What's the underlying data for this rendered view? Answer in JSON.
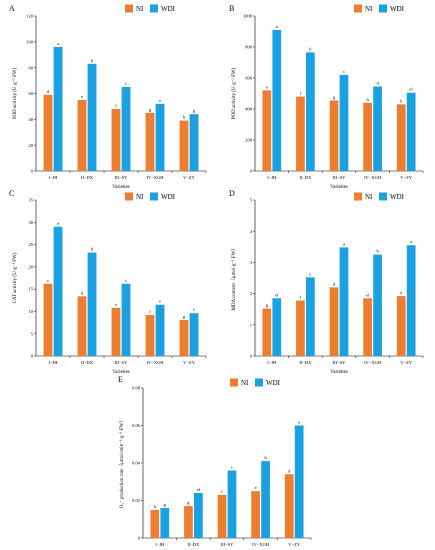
{
  "figure": {
    "legend": {
      "ni_label": "NI",
      "wdi_label": "WDI",
      "ni_color": "#ED7D31",
      "wdi_color": "#1BA1E2"
    },
    "categories": [
      "I−JH",
      "II−DX",
      "III−SY",
      "IV−XGH",
      "V−ZY"
    ]
  },
  "chart_data": [
    {
      "panel": "A",
      "type": "bar",
      "ylabel": "SOD activity (U·g⁻¹ FW)",
      "xlabel": "Varieties",
      "ylim": [
        0,
        120
      ],
      "yticks": [
        0,
        20,
        40,
        60,
        80,
        100,
        120
      ],
      "categories": [
        "I−JH",
        "II−DX",
        "III−SY",
        "IV−XGH",
        "V−ZY"
      ],
      "series": [
        {
          "name": "NI",
          "values": [
            59,
            55,
            48,
            45,
            39
          ],
          "letters": [
            "d",
            "e",
            "f",
            "g",
            "h"
          ]
        },
        {
          "name": "WDI",
          "values": [
            96,
            83,
            65,
            52,
            44
          ],
          "letters": [
            "a",
            "b",
            "c",
            "e",
            "g"
          ]
        }
      ]
    },
    {
      "panel": "B",
      "type": "bar",
      "ylabel": "POD activity (U·g⁻¹ FW)",
      "xlabel": "Varieties",
      "ylim": [
        0,
        1000
      ],
      "yticks": [
        0,
        200,
        400,
        600,
        800,
        1000
      ],
      "categories": [
        "I−JH",
        "II−DX",
        "III−SY",
        "IV−XGH",
        "V−ZY"
      ],
      "series": [
        {
          "name": "NI",
          "values": [
            520,
            480,
            455,
            440,
            430
          ],
          "letters": [
            "e",
            "f",
            "g",
            "h",
            "h"
          ]
        },
        {
          "name": "WDI",
          "values": [
            910,
            765,
            620,
            545,
            505
          ],
          "letters": [
            "a",
            "b",
            "c",
            "d",
            "ef"
          ]
        }
      ]
    },
    {
      "panel": "C",
      "type": "bar",
      "ylabel": "CAT activity (U·g⁻¹ FW)",
      "xlabel": "Varieties",
      "ylim": [
        0,
        35
      ],
      "yticks": [
        0,
        5,
        10,
        15,
        20,
        25,
        30,
        35
      ],
      "categories": [
        "I−JH",
        "II−DX",
        "III−SY",
        "IV−XGH",
        "V−ZY"
      ],
      "series": [
        {
          "name": "NI",
          "values": [
            16.2,
            13.4,
            10.8,
            9.2,
            8.1
          ],
          "letters": [
            "c",
            "d",
            "e",
            "f",
            "g"
          ]
        },
        {
          "name": "WDI",
          "values": [
            29.0,
            23.2,
            16.2,
            11.5,
            9.6
          ],
          "letters": [
            "a",
            "b",
            "c",
            "e",
            "f"
          ]
        }
      ]
    },
    {
      "panel": "D",
      "type": "bar",
      "ylabel": "MDA content（μmol·g⁻¹ FW）",
      "xlabel": "Varieties",
      "ylim": [
        0,
        5
      ],
      "yticks": [
        0,
        1,
        2,
        3,
        4,
        5
      ],
      "categories": [
        "I−JH",
        "II−DX",
        "III−SY",
        "IV−XGH",
        "V−ZY"
      ],
      "series": [
        {
          "name": "NI",
          "values": [
            1.52,
            1.78,
            2.2,
            1.85,
            1.92
          ],
          "letters": [
            "g",
            "f",
            "d",
            "ef",
            "e"
          ]
        },
        {
          "name": "WDI",
          "values": [
            1.85,
            2.52,
            3.48,
            3.25,
            3.55
          ],
          "letters": [
            "ef",
            "c",
            "a",
            "b",
            "a"
          ]
        }
      ]
    },
    {
      "panel": "E",
      "type": "bar",
      "ylabel": "O₂⁻ production rate（μmol·min⁻¹·g⁻¹ FW）",
      "xlabel": "Varieties",
      "ylim": [
        0,
        0.08
      ],
      "yticks": [
        0,
        0.02,
        0.04,
        0.06,
        0.08
      ],
      "categories": [
        "I−JH",
        "II−DX",
        "III−SY",
        "IV−XGH",
        "V−ZY"
      ],
      "series": [
        {
          "name": "NI",
          "values": [
            0.015,
            0.017,
            0.023,
            0.025,
            0.034
          ],
          "letters": [
            "h",
            "g",
            "f",
            "e",
            "d"
          ]
        },
        {
          "name": "WDI",
          "values": [
            0.016,
            0.024,
            0.036,
            0.041,
            0.06
          ],
          "letters": [
            "g",
            "ef",
            "c",
            "b",
            "a"
          ]
        }
      ]
    }
  ]
}
